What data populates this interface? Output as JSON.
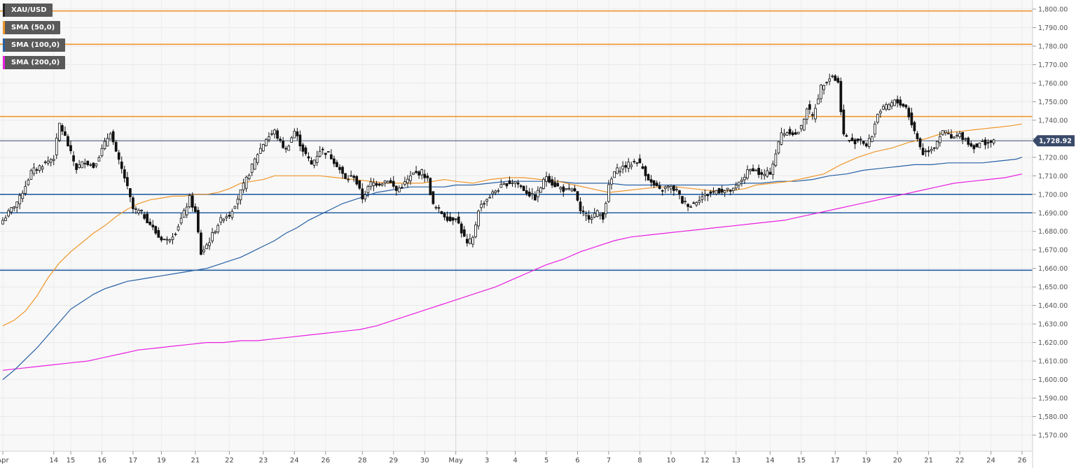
{
  "chart_data": {
    "type": "candlestick",
    "symbol": "XAU/USD",
    "last_price": 1728.92,
    "last_price_label": "1,728.92",
    "y_ticks": [
      "1,800.00",
      "1,790.00",
      "1,780.00",
      "1,770.00",
      "1,760.00",
      "1,750.00",
      "1,740.00",
      "1,730.00",
      "1,720.00",
      "1,710.00",
      "1,700.00",
      "1,690.00",
      "1,680.00",
      "1,670.00",
      "1,660.00",
      "1,650.00",
      "1,640.00",
      "1,630.00",
      "1,620.00",
      "1,610.00",
      "1,600.00",
      "1,590.00",
      "1,580.00",
      "1,570.00"
    ],
    "y_tick_values": [
      1800,
      1790,
      1780,
      1770,
      1760,
      1750,
      1740,
      1730,
      1720,
      1710,
      1700,
      1690,
      1680,
      1670,
      1660,
      1650,
      1640,
      1630,
      1620,
      1610,
      1600,
      1590,
      1580,
      1570
    ],
    "ylim": [
      1566,
      1806
    ],
    "x_ticks": [
      "Apr",
      "14",
      "15",
      "16",
      "17",
      "19",
      "21",
      "22",
      "23",
      "24",
      "26",
      "28",
      "29",
      "30",
      "May",
      "3",
      "4",
      "5",
      "6",
      "7",
      "8",
      "10",
      "12",
      "13",
      "14",
      "15",
      "17",
      "19",
      "20",
      "21",
      "22",
      "24",
      "26"
    ],
    "x_tick_index": [
      0,
      18,
      24,
      35,
      46,
      56,
      68,
      80,
      92,
      103,
      114,
      127,
      138,
      149,
      160,
      171,
      181,
      192,
      203,
      214,
      225,
      236,
      248,
      259,
      271,
      282,
      294,
      305,
      316,
      327,
      338,
      349,
      360
    ],
    "x_bar_range": [
      0,
      367
    ],
    "vertical_separator_index": 160,
    "horizontal_levels": [
      {
        "value": 1799,
        "color": "#f0962a"
      },
      {
        "value": 1781,
        "color": "#f0962a"
      },
      {
        "value": 1742,
        "color": "#f0962a"
      },
      {
        "value": 1700,
        "color": "#2660a4"
      },
      {
        "value": 1690,
        "color": "#2660a4"
      },
      {
        "value": 1659,
        "color": "#2660a4"
      }
    ],
    "series": [
      {
        "name": "XAU/USD",
        "color": "#222222"
      },
      {
        "name": "SMA (50,0)",
        "color": "#f0962a"
      },
      {
        "name": "SMA (100,0)",
        "color": "#2660a4"
      },
      {
        "name": "SMA (200,0)",
        "color": "#e81ee0"
      }
    ],
    "sma50": [
      [
        0,
        1629
      ],
      [
        4,
        1632
      ],
      [
        8,
        1637
      ],
      [
        12,
        1645
      ],
      [
        16,
        1655
      ],
      [
        20,
        1663
      ],
      [
        24,
        1669
      ],
      [
        28,
        1674
      ],
      [
        32,
        1679
      ],
      [
        36,
        1683
      ],
      [
        40,
        1688
      ],
      [
        44,
        1692
      ],
      [
        48,
        1695
      ],
      [
        52,
        1697
      ],
      [
        56,
        1698
      ],
      [
        60,
        1699
      ],
      [
        64,
        1699
      ],
      [
        68,
        1700
      ],
      [
        72,
        1700
      ],
      [
        76,
        1701
      ],
      [
        80,
        1703
      ],
      [
        84,
        1706
      ],
      [
        88,
        1707
      ],
      [
        92,
        1708
      ],
      [
        96,
        1710
      ],
      [
        100,
        1710
      ],
      [
        106,
        1710
      ],
      [
        112,
        1710
      ],
      [
        118,
        1709
      ],
      [
        124,
        1708
      ],
      [
        130,
        1707
      ],
      [
        136,
        1706
      ],
      [
        142,
        1706
      ],
      [
        148,
        1706
      ],
      [
        152,
        1707
      ],
      [
        156,
        1708
      ],
      [
        160,
        1707
      ],
      [
        166,
        1706
      ],
      [
        172,
        1708
      ],
      [
        178,
        1709
      ],
      [
        184,
        1709
      ],
      [
        190,
        1708
      ],
      [
        196,
        1707
      ],
      [
        202,
        1705
      ],
      [
        208,
        1703
      ],
      [
        214,
        1701
      ],
      [
        220,
        1702
      ],
      [
        226,
        1703
      ],
      [
        232,
        1704
      ],
      [
        238,
        1704
      ],
      [
        244,
        1703
      ],
      [
        250,
        1702
      ],
      [
        256,
        1702
      ],
      [
        262,
        1703
      ],
      [
        266,
        1705
      ],
      [
        272,
        1706
      ],
      [
        278,
        1707
      ],
      [
        284,
        1709
      ],
      [
        290,
        1711
      ],
      [
        296,
        1716
      ],
      [
        302,
        1720
      ],
      [
        308,
        1723
      ],
      [
        314,
        1725
      ],
      [
        320,
        1728
      ],
      [
        326,
        1730
      ],
      [
        332,
        1733
      ],
      [
        338,
        1734
      ],
      [
        344,
        1735
      ],
      [
        350,
        1736
      ],
      [
        356,
        1737
      ],
      [
        360,
        1738
      ]
    ],
    "sma100": [
      [
        0,
        1600
      ],
      [
        4,
        1605
      ],
      [
        8,
        1611
      ],
      [
        12,
        1617
      ],
      [
        16,
        1624
      ],
      [
        20,
        1631
      ],
      [
        24,
        1638
      ],
      [
        28,
        1642
      ],
      [
        32,
        1646
      ],
      [
        36,
        1649
      ],
      [
        40,
        1651
      ],
      [
        44,
        1653
      ],
      [
        48,
        1654
      ],
      [
        52,
        1655
      ],
      [
        56,
        1656
      ],
      [
        60,
        1657
      ],
      [
        64,
        1658
      ],
      [
        68,
        1659
      ],
      [
        72,
        1660
      ],
      [
        76,
        1662
      ],
      [
        80,
        1664
      ],
      [
        84,
        1666
      ],
      [
        88,
        1669
      ],
      [
        92,
        1672
      ],
      [
        96,
        1675
      ],
      [
        100,
        1679
      ],
      [
        104,
        1682
      ],
      [
        108,
        1686
      ],
      [
        112,
        1689
      ],
      [
        116,
        1692
      ],
      [
        120,
        1695
      ],
      [
        124,
        1697
      ],
      [
        128,
        1699
      ],
      [
        132,
        1701
      ],
      [
        136,
        1702
      ],
      [
        140,
        1703
      ],
      [
        144,
        1704
      ],
      [
        148,
        1704
      ],
      [
        152,
        1704
      ],
      [
        156,
        1704
      ],
      [
        160,
        1705
      ],
      [
        166,
        1705
      ],
      [
        172,
        1706
      ],
      [
        178,
        1707
      ],
      [
        184,
        1707
      ],
      [
        190,
        1707
      ],
      [
        196,
        1707
      ],
      [
        202,
        1706
      ],
      [
        208,
        1706
      ],
      [
        214,
        1706
      ],
      [
        220,
        1705
      ],
      [
        226,
        1705
      ],
      [
        232,
        1705
      ],
      [
        238,
        1705
      ],
      [
        244,
        1705
      ],
      [
        250,
        1705
      ],
      [
        256,
        1705
      ],
      [
        262,
        1706
      ],
      [
        268,
        1706
      ],
      [
        274,
        1707
      ],
      [
        280,
        1707
      ],
      [
        286,
        1708
      ],
      [
        292,
        1710
      ],
      [
        298,
        1711
      ],
      [
        304,
        1713
      ],
      [
        310,
        1714
      ],
      [
        316,
        1715
      ],
      [
        322,
        1716
      ],
      [
        328,
        1716
      ],
      [
        334,
        1717
      ],
      [
        340,
        1717
      ],
      [
        346,
        1717
      ],
      [
        352,
        1718
      ],
      [
        358,
        1719
      ],
      [
        360,
        1720
      ]
    ],
    "sma200": [
      [
        0,
        1605
      ],
      [
        6,
        1606
      ],
      [
        12,
        1607
      ],
      [
        18,
        1608
      ],
      [
        24,
        1609
      ],
      [
        30,
        1610
      ],
      [
        36,
        1612
      ],
      [
        42,
        1614
      ],
      [
        48,
        1616
      ],
      [
        54,
        1617
      ],
      [
        60,
        1618
      ],
      [
        66,
        1619
      ],
      [
        72,
        1620
      ],
      [
        78,
        1620
      ],
      [
        84,
        1621
      ],
      [
        90,
        1621
      ],
      [
        96,
        1622
      ],
      [
        102,
        1623
      ],
      [
        108,
        1624
      ],
      [
        114,
        1625
      ],
      [
        120,
        1626
      ],
      [
        126,
        1627
      ],
      [
        132,
        1629
      ],
      [
        138,
        1632
      ],
      [
        144,
        1635
      ],
      [
        150,
        1638
      ],
      [
        156,
        1641
      ],
      [
        162,
        1644
      ],
      [
        168,
        1647
      ],
      [
        174,
        1650
      ],
      [
        180,
        1654
      ],
      [
        186,
        1658
      ],
      [
        192,
        1662
      ],
      [
        198,
        1665
      ],
      [
        204,
        1669
      ],
      [
        210,
        1672
      ],
      [
        216,
        1675
      ],
      [
        222,
        1677
      ],
      [
        228,
        1678
      ],
      [
        234,
        1679
      ],
      [
        240,
        1680
      ],
      [
        246,
        1681
      ],
      [
        252,
        1682
      ],
      [
        258,
        1683
      ],
      [
        264,
        1684
      ],
      [
        270,
        1685
      ],
      [
        276,
        1686
      ],
      [
        282,
        1688
      ],
      [
        288,
        1690
      ],
      [
        294,
        1692
      ],
      [
        300,
        1694
      ],
      [
        306,
        1696
      ],
      [
        312,
        1698
      ],
      [
        318,
        1700
      ],
      [
        324,
        1702
      ],
      [
        330,
        1704
      ],
      [
        336,
        1706
      ],
      [
        342,
        1707
      ],
      [
        348,
        1708
      ],
      [
        354,
        1709
      ],
      [
        360,
        1711
      ]
    ],
    "candle_anchors": [
      [
        0,
        1686
      ],
      [
        6,
        1698
      ],
      [
        10,
        1712
      ],
      [
        14,
        1716
      ],
      [
        18,
        1720
      ],
      [
        20,
        1738
      ],
      [
        22,
        1731
      ],
      [
        24,
        1722
      ],
      [
        26,
        1714
      ],
      [
        29,
        1718
      ],
      [
        32,
        1715
      ],
      [
        35,
        1724
      ],
      [
        38,
        1734
      ],
      [
        40,
        1722
      ],
      [
        43,
        1709
      ],
      [
        46,
        1692
      ],
      [
        49,
        1690
      ],
      [
        52,
        1684
      ],
      [
        55,
        1677
      ],
      [
        58,
        1675
      ],
      [
        61,
        1680
      ],
      [
        64,
        1690
      ],
      [
        66,
        1698
      ],
      [
        68,
        1690
      ],
      [
        70,
        1668
      ],
      [
        73,
        1675
      ],
      [
        76,
        1684
      ],
      [
        78,
        1688
      ],
      [
        80,
        1689
      ],
      [
        83,
        1698
      ],
      [
        86,
        1708
      ],
      [
        88,
        1715
      ],
      [
        90,
        1722
      ],
      [
        93,
        1730
      ],
      [
        96,
        1734
      ],
      [
        98,
        1728
      ],
      [
        100,
        1724
      ],
      [
        103,
        1734
      ],
      [
        106,
        1724
      ],
      [
        109,
        1716
      ],
      [
        112,
        1724
      ],
      [
        115,
        1722
      ],
      [
        118,
        1716
      ],
      [
        121,
        1708
      ],
      [
        124,
        1710
      ],
      [
        127,
        1698
      ],
      [
        130,
        1706
      ],
      [
        133,
        1706
      ],
      [
        136,
        1708
      ],
      [
        139,
        1702
      ],
      [
        142,
        1706
      ],
      [
        145,
        1711
      ],
      [
        148,
        1712
      ],
      [
        150,
        1708
      ],
      [
        152,
        1694
      ],
      [
        155,
        1690
      ],
      [
        158,
        1686
      ],
      [
        160,
        1688
      ],
      [
        162,
        1680
      ],
      [
        164,
        1673
      ],
      [
        166,
        1676
      ],
      [
        168,
        1692
      ],
      [
        170,
        1696
      ],
      [
        174,
        1702
      ],
      [
        178,
        1706
      ],
      [
        181,
        1707
      ],
      [
        183,
        1704
      ],
      [
        186,
        1700
      ],
      [
        188,
        1698
      ],
      [
        190,
        1704
      ],
      [
        192,
        1710
      ],
      [
        194,
        1706
      ],
      [
        196,
        1704
      ],
      [
        199,
        1702
      ],
      [
        202,
        1702
      ],
      [
        204,
        1690
      ],
      [
        207,
        1688
      ],
      [
        210,
        1690
      ],
      [
        212,
        1688
      ],
      [
        214,
        1704
      ],
      [
        216,
        1712
      ],
      [
        218,
        1714
      ],
      [
        221,
        1716
      ],
      [
        224,
        1718
      ],
      [
        226,
        1714
      ],
      [
        229,
        1706
      ],
      [
        232,
        1702
      ],
      [
        235,
        1704
      ],
      [
        238,
        1702
      ],
      [
        240,
        1696
      ],
      [
        243,
        1694
      ],
      [
        246,
        1698
      ],
      [
        249,
        1700
      ],
      [
        252,
        1702
      ],
      [
        255,
        1702
      ],
      [
        258,
        1702
      ],
      [
        261,
        1708
      ],
      [
        263,
        1712
      ],
      [
        265,
        1714
      ],
      [
        268,
        1710
      ],
      [
        271,
        1712
      ],
      [
        273,
        1722
      ],
      [
        275,
        1733
      ],
      [
        278,
        1734
      ],
      [
        280,
        1732
      ],
      [
        282,
        1736
      ],
      [
        284,
        1747
      ],
      [
        286,
        1742
      ],
      [
        289,
        1758
      ],
      [
        291,
        1762
      ],
      [
        293,
        1764
      ],
      [
        295,
        1760
      ],
      [
        297,
        1732
      ],
      [
        300,
        1728
      ],
      [
        303,
        1730
      ],
      [
        305,
        1726
      ],
      [
        307,
        1732
      ],
      [
        309,
        1744
      ],
      [
        311,
        1746
      ],
      [
        313,
        1748
      ],
      [
        315,
        1750
      ],
      [
        317,
        1749
      ],
      [
        319,
        1747
      ],
      [
        321,
        1738
      ],
      [
        323,
        1730
      ],
      [
        325,
        1722
      ],
      [
        327,
        1724
      ],
      [
        329,
        1726
      ],
      [
        331,
        1732
      ],
      [
        333,
        1734
      ],
      [
        335,
        1730
      ],
      [
        338,
        1732
      ],
      [
        340,
        1730
      ],
      [
        342,
        1726
      ],
      [
        344,
        1726
      ],
      [
        346,
        1728
      ],
      [
        348,
        1728
      ],
      [
        350,
        1728
      ]
    ]
  }
}
